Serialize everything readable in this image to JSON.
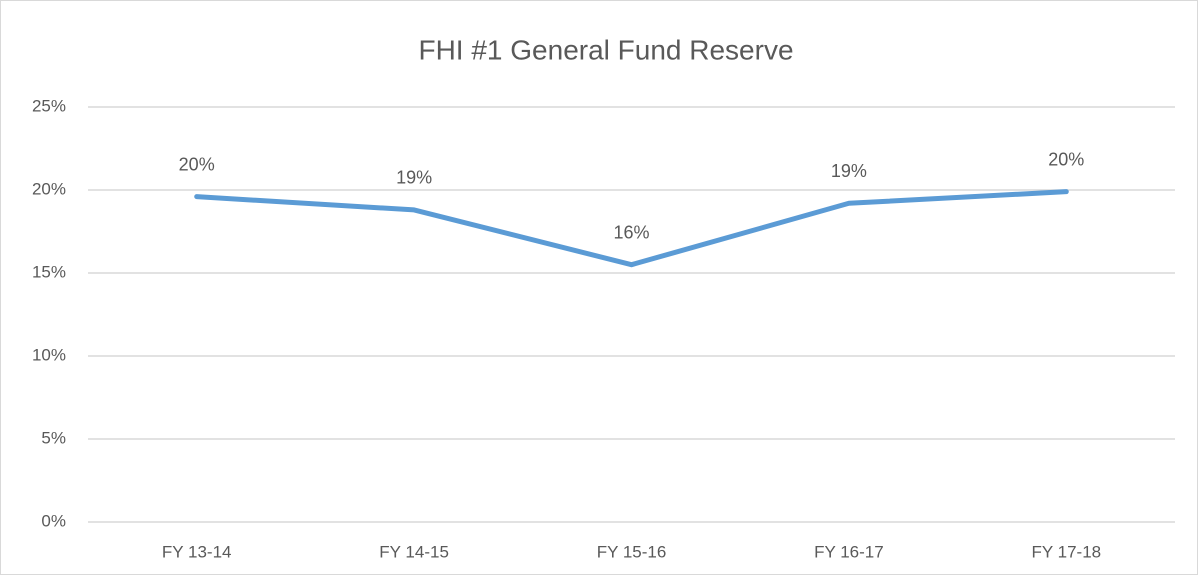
{
  "chart_data": {
    "type": "line",
    "title": "FHI #1 General Fund Reserve",
    "categories": [
      "FY 13-14",
      "FY 14-15",
      "FY 15-16",
      "FY 16-17",
      "FY 17-18"
    ],
    "values": [
      19.6,
      18.8,
      15.5,
      19.2,
      19.9
    ],
    "value_labels": [
      "20%",
      "19%",
      "16%",
      "19%",
      "20%"
    ],
    "color": "#5b9bd5",
    "ylim": [
      0,
      25
    ],
    "yticks": [
      {
        "value": 0,
        "label": "0%"
      },
      {
        "value": 5,
        "label": "5%"
      },
      {
        "value": 10,
        "label": "10%"
      },
      {
        "value": 15,
        "label": "15%"
      },
      {
        "value": 20,
        "label": "20%"
      },
      {
        "value": 25,
        "label": "25%"
      }
    ],
    "grid": true
  }
}
